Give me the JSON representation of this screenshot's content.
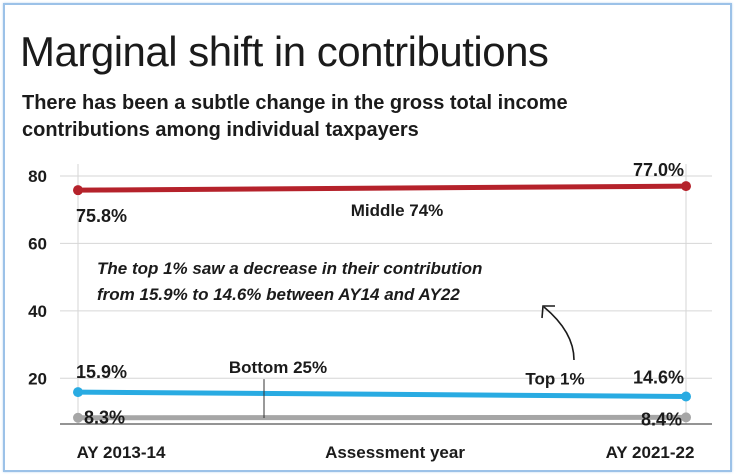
{
  "chart_data": {
    "type": "line",
    "title": "Marginal shift in contributions",
    "subtitle": "There has been a subtle change in the gross total income contributions among individual taxpayers",
    "xlabel": "Assessment year",
    "ylabel": "",
    "categories": [
      "AY 2013-14",
      "AY 2021-22"
    ],
    "ylim": [
      10,
      80
    ],
    "yticks": [
      20,
      40,
      60,
      80
    ],
    "grid": true,
    "series": [
      {
        "name": "Middle 74%",
        "values": [
          75.8,
          77.0
        ],
        "labels": [
          "75.8%",
          "77.0%"
        ],
        "color": "#b5222b"
      },
      {
        "name": "Top 1%",
        "values": [
          15.9,
          14.6
        ],
        "labels": [
          "15.9%",
          "14.6%"
        ],
        "color": "#29abe2"
      },
      {
        "name": "Bottom 25%",
        "values": [
          8.3,
          8.4
        ],
        "labels": [
          "8.3%",
          "8.4%"
        ],
        "color": "#a6a6a6"
      }
    ],
    "annotation": {
      "line1": "The top 1% saw a decrease in their contribution",
      "line2": "from 15.9% to 14.6% between AY14 and AY22"
    }
  }
}
